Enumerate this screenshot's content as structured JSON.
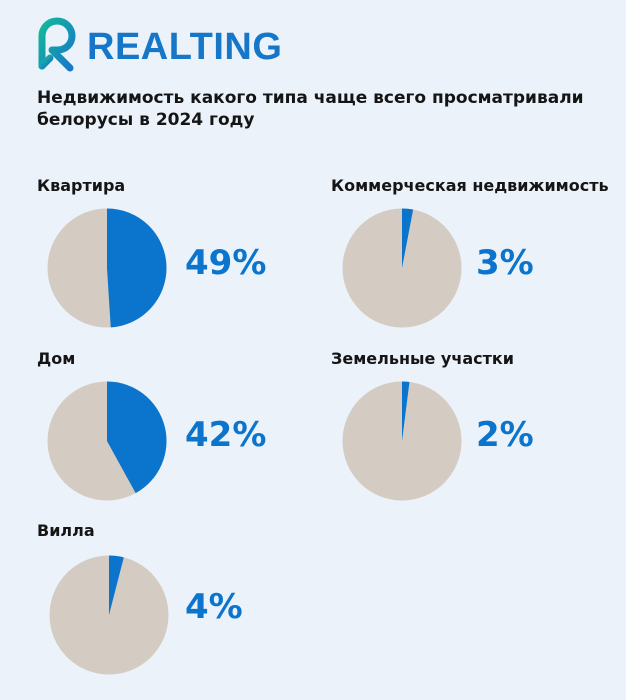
{
  "brand": {
    "name": "REALTING",
    "logo_icon": "realting-r-logo-icon",
    "color": "#1677C9"
  },
  "title": "Недвижимость какого типа чаще всего просматривали белорусы в 2024 году",
  "colors": {
    "background": "#EBF2FA",
    "highlight": "#0B74CC",
    "rest": "#D4CCC2"
  },
  "items": [
    {
      "label": "Квартира",
      "value": 49,
      "value_label": "49%"
    },
    {
      "label": "Коммерческая недвижимость",
      "value": 3,
      "value_label": "3%"
    },
    {
      "label": "Дом",
      "value": 42,
      "value_label": "42%"
    },
    {
      "label": "Земельные участки",
      "value": 2,
      "value_label": "2%"
    },
    {
      "label": "Вилла",
      "value": 4,
      "value_label": "4%"
    }
  ],
  "chart_data": {
    "type": "pie",
    "title": "Недвижимость какого типа чаще всего просматривали белорусы в 2024 году",
    "categories": [
      "Квартира",
      "Коммерческая недвижимость",
      "Дом",
      "Земельные участки",
      "Вилла"
    ],
    "values": [
      49,
      3,
      42,
      2,
      4
    ],
    "unit": "%",
    "layout": "small multiples, one pie per category, highlighted share vs remainder",
    "legend": "none"
  }
}
